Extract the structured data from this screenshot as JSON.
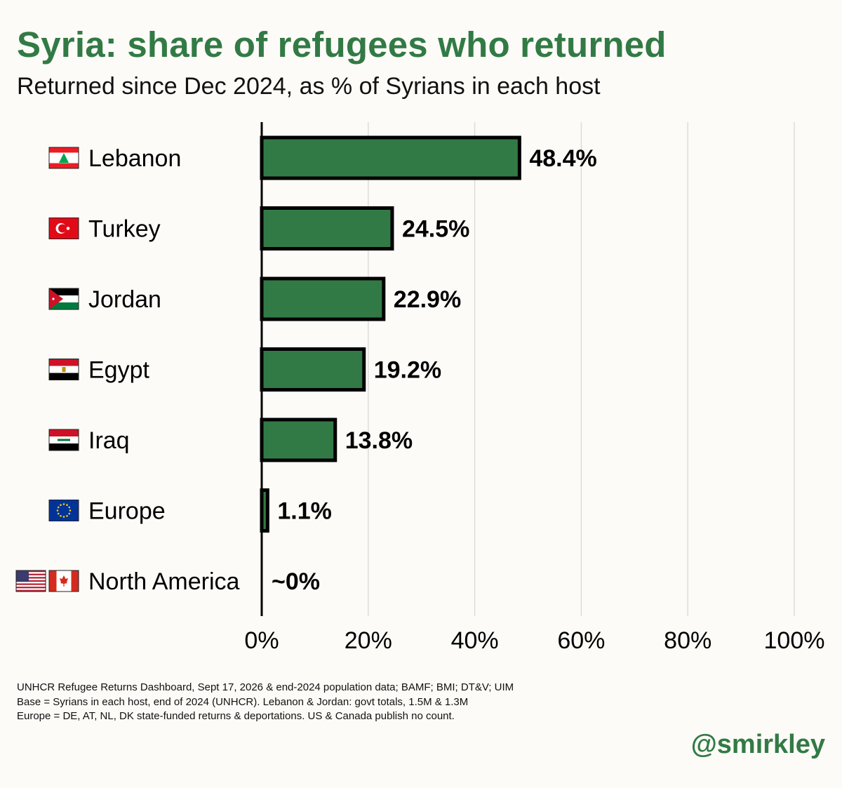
{
  "title": "Syria: share of refugees who returned",
  "subtitle": "Returned since Dec 2024, as % of Syrians in each host",
  "chart_data": {
    "type": "bar",
    "orientation": "horizontal",
    "categories": [
      "Lebanon",
      "Turkey",
      "Jordan",
      "Egypt",
      "Iraq",
      "Europe",
      "North America"
    ],
    "values": [
      48.4,
      24.5,
      22.9,
      19.2,
      13.8,
      1.1,
      0
    ],
    "value_labels": [
      "48.4%",
      "24.5%",
      "22.9%",
      "19.2%",
      "13.8%",
      "1.1%",
      "~0%"
    ],
    "flags": [
      [
        "lebanon-flag"
      ],
      [
        "turkey-flag"
      ],
      [
        "jordan-flag"
      ],
      [
        "egypt-flag"
      ],
      [
        "iraq-flag"
      ],
      [
        "eu-flag"
      ],
      [
        "usa-flag",
        "canada-flag"
      ]
    ],
    "xlim": [
      0,
      100
    ],
    "xticks": [
      0,
      20,
      40,
      60,
      80,
      100
    ],
    "xtick_labels": [
      "0%",
      "20%",
      "40%",
      "60%",
      "80%",
      "100%"
    ],
    "grid": true,
    "colors": {
      "bar": "#327a45",
      "bar_border": "#000000",
      "grid": "#dcdcdc",
      "accent": "#327a45"
    }
  },
  "source_lines": [
    "UNHCR Refugee Returns Dashboard, Sept 17, 2026 & end-2024 population data; BAMF; BMI; DT&V; UIM",
    "Base = Syrians in each host, end of 2024 (UNHCR). Lebanon & Jordan: govt totals, 1.5M & 1.3M",
    "Europe = DE, AT, NL, DK state-funded returns & deportations. US & Canada publish no count."
  ],
  "handle": "@smirkley"
}
